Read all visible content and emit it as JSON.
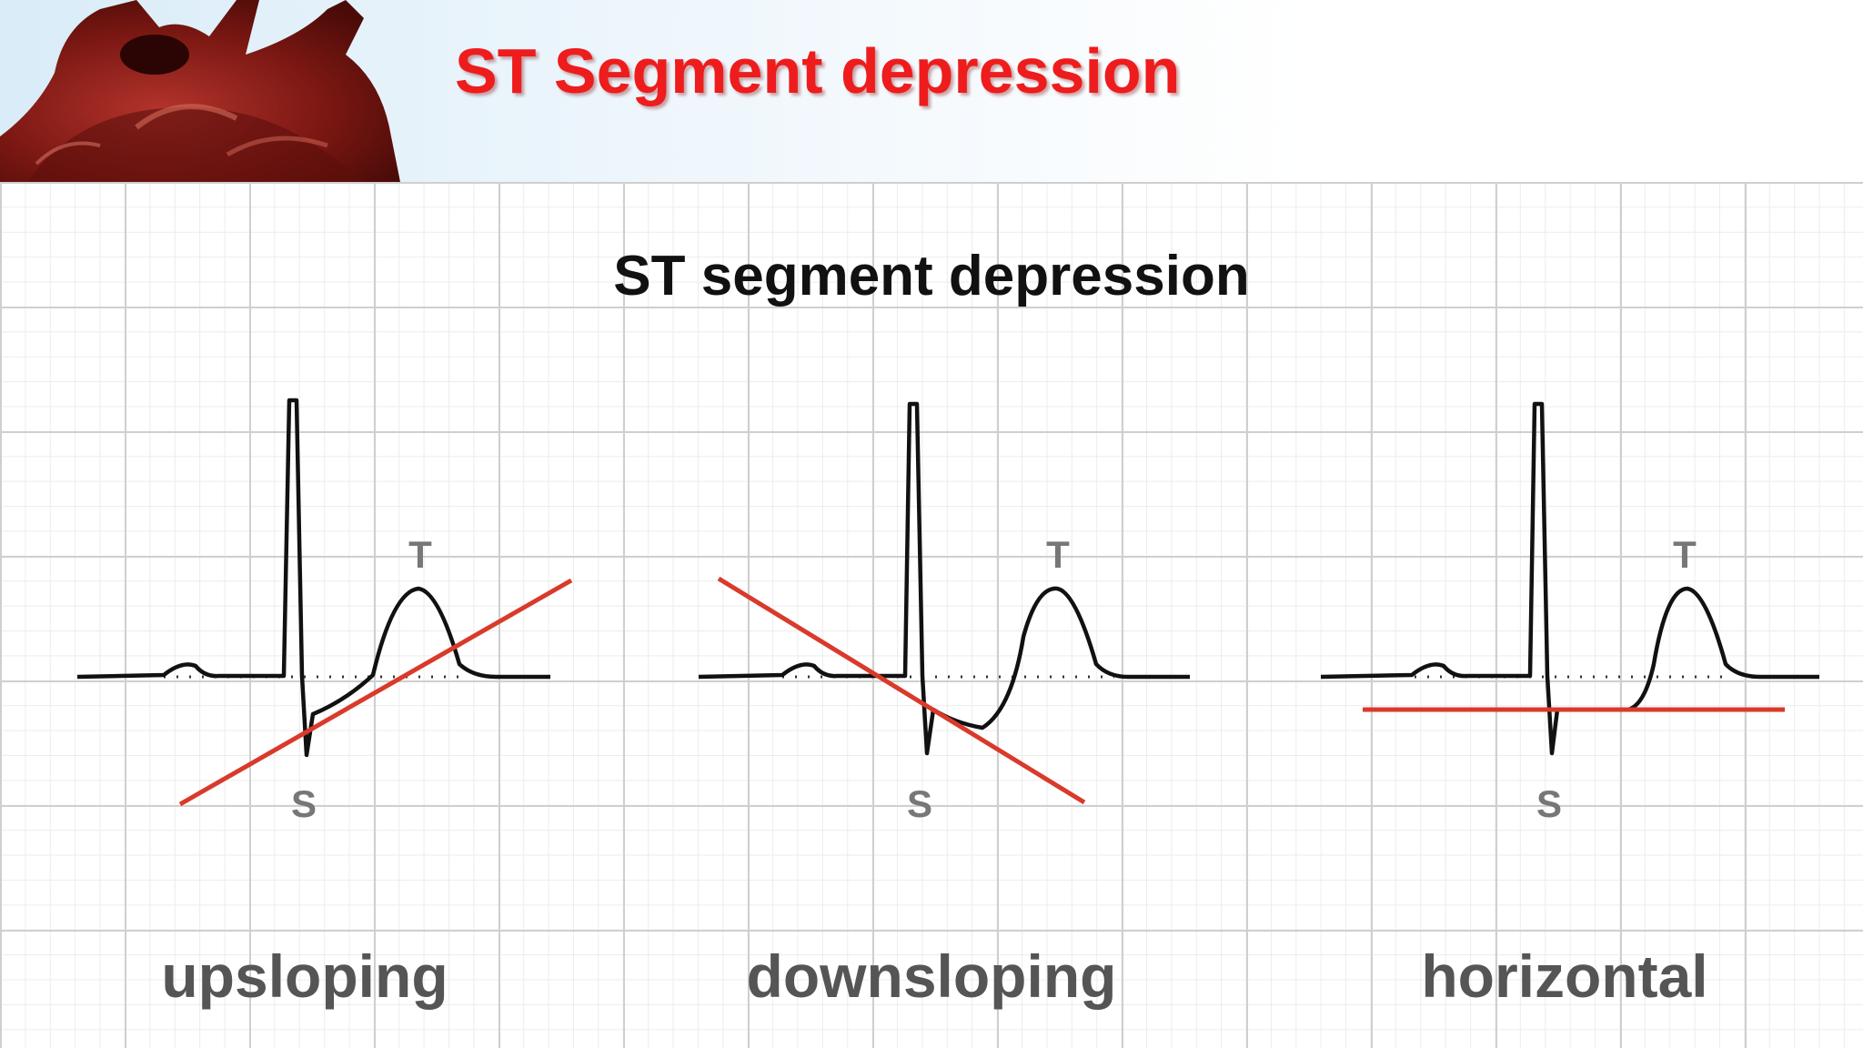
{
  "slide": {
    "title": "ST Segment depression",
    "colors": {
      "title": "#ee1c1c",
      "ecg_trace": "#111111",
      "st_line": "#d93a2b",
      "grid": "#cfcfcf"
    }
  },
  "figure": {
    "title": "ST segment depression",
    "panels": [
      {
        "label": "upsloping",
        "t_label": "T",
        "s_label": "S"
      },
      {
        "label": "downsloping",
        "t_label": "T",
        "s_label": "S"
      },
      {
        "label": "horizontal",
        "t_label": "T",
        "s_label": "S"
      }
    ]
  }
}
